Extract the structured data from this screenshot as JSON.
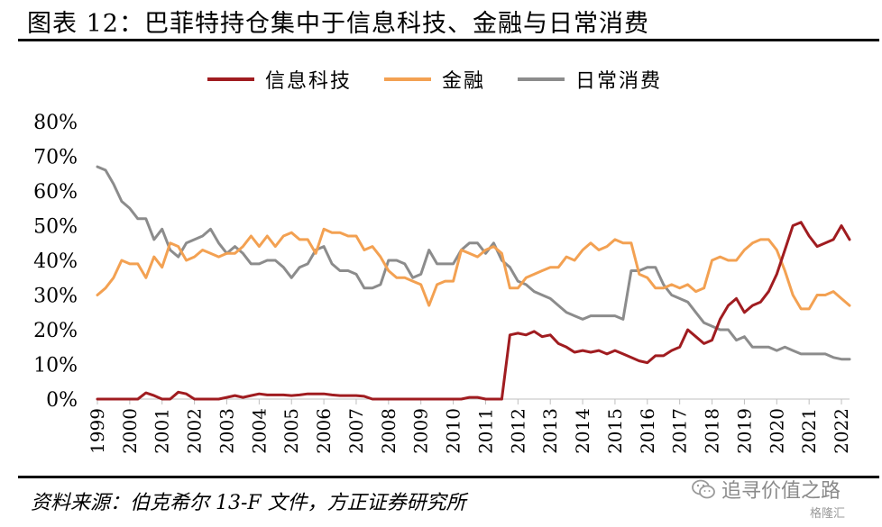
{
  "header": {
    "title": "图表 12：巴菲特持仓集中于信息科技、金融与日常消费"
  },
  "footer": {
    "source": "资料来源：伯克希尔 13-F 文件，方正证券研究所",
    "watermark": "追寻价值之路",
    "watermark_small": "格隆汇"
  },
  "chart_data": {
    "type": "line",
    "x": [
      1999.0,
      1999.25,
      1999.5,
      1999.75,
      2000.0,
      2000.25,
      2000.5,
      2000.75,
      2001.0,
      2001.25,
      2001.5,
      2001.75,
      2002.0,
      2002.25,
      2002.5,
      2002.75,
      2003.0,
      2003.25,
      2003.5,
      2003.75,
      2004.0,
      2004.25,
      2004.5,
      2004.75,
      2005.0,
      2005.25,
      2005.5,
      2005.75,
      2006.0,
      2006.25,
      2006.5,
      2006.75,
      2007.0,
      2007.25,
      2007.5,
      2007.75,
      2008.0,
      2008.25,
      2008.5,
      2008.75,
      2009.0,
      2009.25,
      2009.5,
      2009.75,
      2010.0,
      2010.25,
      2010.5,
      2010.75,
      2011.0,
      2011.25,
      2011.5,
      2011.75,
      2012.0,
      2012.25,
      2012.5,
      2012.75,
      2013.0,
      2013.25,
      2013.5,
      2013.75,
      2014.0,
      2014.25,
      2014.5,
      2014.75,
      2015.0,
      2015.25,
      2015.5,
      2015.75,
      2016.0,
      2016.25,
      2016.5,
      2016.75,
      2017.0,
      2017.25,
      2017.5,
      2017.75,
      2018.0,
      2018.25,
      2018.5,
      2018.75,
      2019.0,
      2019.25,
      2019.5,
      2019.75,
      2020.0,
      2020.25,
      2020.5,
      2020.75,
      2021.0,
      2021.25,
      2021.5,
      2021.75,
      2022.0,
      2022.25
    ],
    "series": [
      {
        "name": "信息科技",
        "color": "#a01c20",
        "values": [
          0,
          0,
          0,
          0,
          0,
          0,
          1.8,
          1,
          0,
          0,
          2,
          1.5,
          0,
          0,
          0,
          0,
          0.5,
          1,
          0.5,
          1,
          1.5,
          1.2,
          1.2,
          1.2,
          1,
          1.2,
          1.5,
          1.5,
          1.5,
          1.2,
          1,
          1,
          1,
          0.8,
          0,
          0,
          0,
          0,
          0,
          0,
          0,
          0,
          0,
          0,
          0,
          0,
          0.5,
          0.5,
          0,
          0,
          0,
          18.5,
          19,
          18.5,
          19.5,
          18,
          18.5,
          16,
          15,
          13.5,
          14,
          13.5,
          14,
          13,
          14,
          13,
          12,
          11,
          10.5,
          12.5,
          12.5,
          14,
          15,
          20,
          18,
          16,
          17,
          23,
          27,
          29,
          25,
          27,
          28,
          31,
          36,
          43,
          50,
          51,
          47,
          44,
          45,
          46,
          50,
          46
        ]
      },
      {
        "name": "金融",
        "color": "#f3a152",
        "values": [
          30,
          32,
          35,
          40,
          39,
          39,
          35,
          41,
          38,
          45,
          44,
          40,
          41,
          43,
          42,
          41,
          42,
          42,
          44,
          47,
          44,
          47,
          44,
          47,
          48,
          46,
          46,
          42,
          49,
          48,
          48,
          47,
          47,
          43,
          44,
          41,
          37,
          35,
          35,
          34,
          33,
          27,
          33,
          34,
          34,
          43,
          42,
          41,
          43,
          44,
          42,
          32,
          32,
          35,
          36,
          37,
          38,
          38,
          41,
          40,
          43,
          45,
          43,
          44,
          46,
          45,
          45,
          36,
          35,
          32,
          32,
          33,
          32,
          33,
          31,
          32,
          40,
          41,
          40,
          40,
          43,
          45,
          46,
          46,
          43,
          37,
          30,
          26,
          26,
          30,
          30,
          31,
          29,
          27
        ]
      },
      {
        "name": "日常消费",
        "color": "#8c8c8c",
        "values": [
          67,
          66,
          62,
          57,
          55,
          52,
          52,
          46,
          49,
          43,
          41,
          45,
          46,
          47,
          49,
          45,
          42,
          44,
          42,
          39,
          39,
          40,
          40,
          38,
          35,
          38,
          39,
          43,
          44,
          39,
          37,
          37,
          36,
          32,
          32,
          33,
          40,
          40,
          39,
          35,
          36,
          43,
          39,
          39,
          39,
          43,
          45,
          45,
          42,
          45,
          40,
          38,
          34,
          33,
          31,
          30,
          29,
          27,
          25,
          24,
          23,
          24,
          24,
          24,
          24,
          23,
          37,
          37,
          38,
          38,
          33,
          30,
          29,
          28,
          25,
          22,
          21,
          20,
          20,
          17,
          18,
          15,
          15,
          15,
          14,
          15,
          14,
          13,
          13,
          13,
          13,
          12,
          11.5,
          11.5
        ]
      }
    ],
    "ylim": [
      0,
      80
    ],
    "yticks": [
      0,
      10,
      20,
      30,
      40,
      50,
      60,
      70,
      80
    ],
    "ytick_labels": [
      "0%",
      "10%",
      "20%",
      "30%",
      "40%",
      "50%",
      "60%",
      "70%",
      "80%"
    ],
    "xticks": [
      1999,
      2000,
      2001,
      2002,
      2003,
      2004,
      2005,
      2006,
      2007,
      2008,
      2009,
      2010,
      2011,
      2012,
      2013,
      2014,
      2015,
      2016,
      2017,
      2018,
      2019,
      2020,
      2021,
      2022
    ],
    "xtick_labels": [
      "1999",
      "2000",
      "2001",
      "2002",
      "2003",
      "2004",
      "2005",
      "2006",
      "2007",
      "2008",
      "2009",
      "2010",
      "2011",
      "2012",
      "2013",
      "2014",
      "2015",
      "2016",
      "2017",
      "2018",
      "2019",
      "2020",
      "2021",
      "2022"
    ],
    "legend": "top-center",
    "grid": false
  }
}
